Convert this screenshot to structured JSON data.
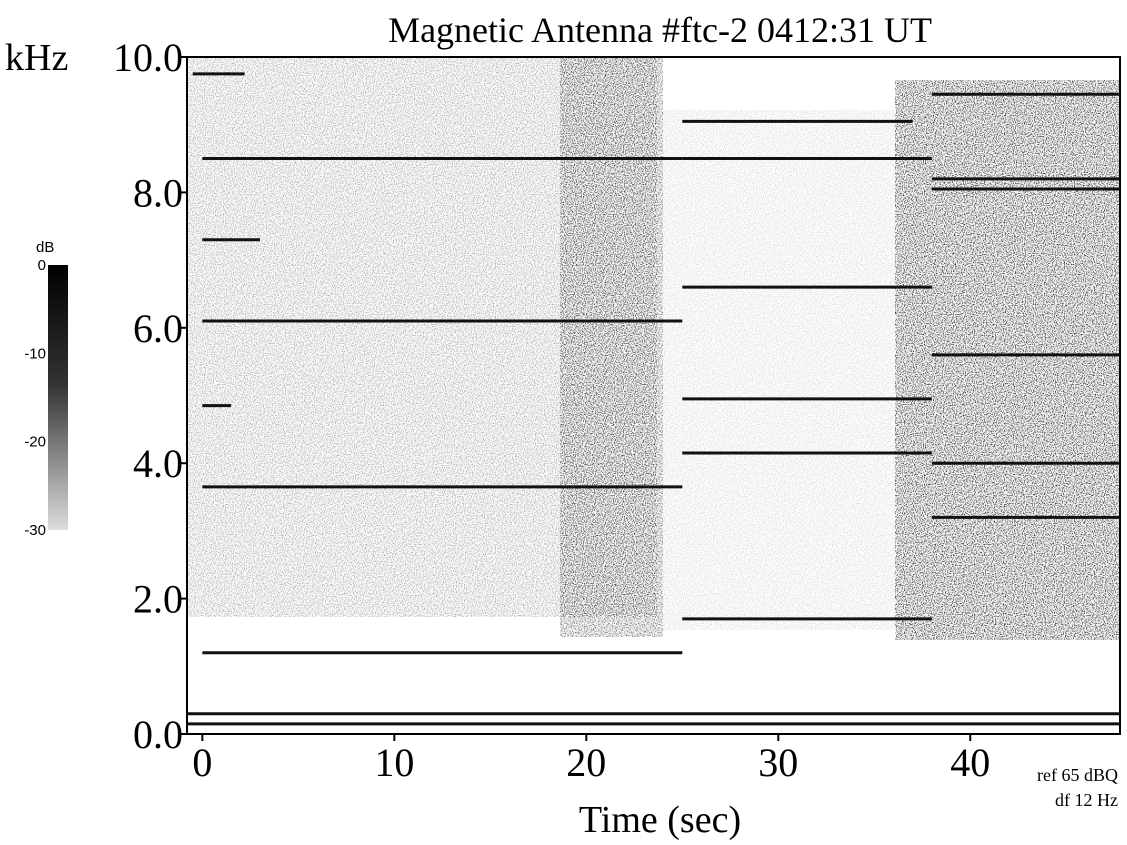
{
  "chart_data": {
    "type": "spectrogram",
    "title": "Magnetic Antenna #ftc-2 0412:31 UT",
    "y_label": "kHz",
    "x_label": "Time (sec)",
    "annotations": [
      "ref 65 dBQ",
      "df 12 Hz"
    ],
    "xlim": [
      -0.8,
      47.8
    ],
    "xticks": [
      0,
      10,
      20,
      30,
      40
    ],
    "ylim": [
      0,
      10
    ],
    "yticks": [
      {
        "value": 0,
        "label": "0.0"
      },
      {
        "value": 2,
        "label": "2.0"
      },
      {
        "value": 4,
        "label": "4.0"
      },
      {
        "value": 6,
        "label": "6.0"
      },
      {
        "value": 8,
        "label": "8.0"
      },
      {
        "value": 10,
        "label": "10.0"
      }
    ],
    "color": "#111111",
    "colorbar": {
      "label": "dB",
      "lim": [
        -30,
        0
      ],
      "ticks": [
        0,
        -10,
        -20,
        -30
      ]
    },
    "segments": [
      {
        "x": [
          0,
          25
        ],
        "y": 8.5
      },
      {
        "x": [
          0,
          25
        ],
        "y": 6.1
      },
      {
        "x": [
          0,
          25
        ],
        "y": 3.65
      },
      {
        "x": [
          0,
          25
        ],
        "y": 1.2
      },
      {
        "x": [
          -0.5,
          2.2
        ],
        "y": 9.75
      },
      {
        "x": [
          0,
          3
        ],
        "y": 7.3
      },
      {
        "x": [
          0,
          1.5
        ],
        "y": 4.85
      },
      {
        "x": [
          25,
          38
        ],
        "y": 8.5
      },
      {
        "x": [
          25,
          37
        ],
        "y": 9.05
      },
      {
        "x": [
          25,
          38
        ],
        "y": 6.6
      },
      {
        "x": [
          25,
          38
        ],
        "y": 4.95
      },
      {
        "x": [
          25,
          38
        ],
        "y": 4.15
      },
      {
        "x": [
          25,
          38
        ],
        "y": 1.7
      },
      {
        "x": [
          38,
          47.8
        ],
        "y": 9.45
      },
      {
        "x": [
          38,
          47.8
        ],
        "y": 8.2
      },
      {
        "x": [
          38,
          47.8
        ],
        "y": 8.05
      },
      {
        "x": [
          38,
          47.8
        ],
        "y": 5.6
      },
      {
        "x": [
          38,
          47.8
        ],
        "y": 4.0
      },
      {
        "x": [
          38,
          47.8
        ],
        "y": 3.2
      },
      {
        "x": [
          -0.8,
          47.8
        ],
        "y": 0.3
      },
      {
        "x": [
          -0.8,
          47.8
        ],
        "y": 0.15
      }
    ]
  }
}
